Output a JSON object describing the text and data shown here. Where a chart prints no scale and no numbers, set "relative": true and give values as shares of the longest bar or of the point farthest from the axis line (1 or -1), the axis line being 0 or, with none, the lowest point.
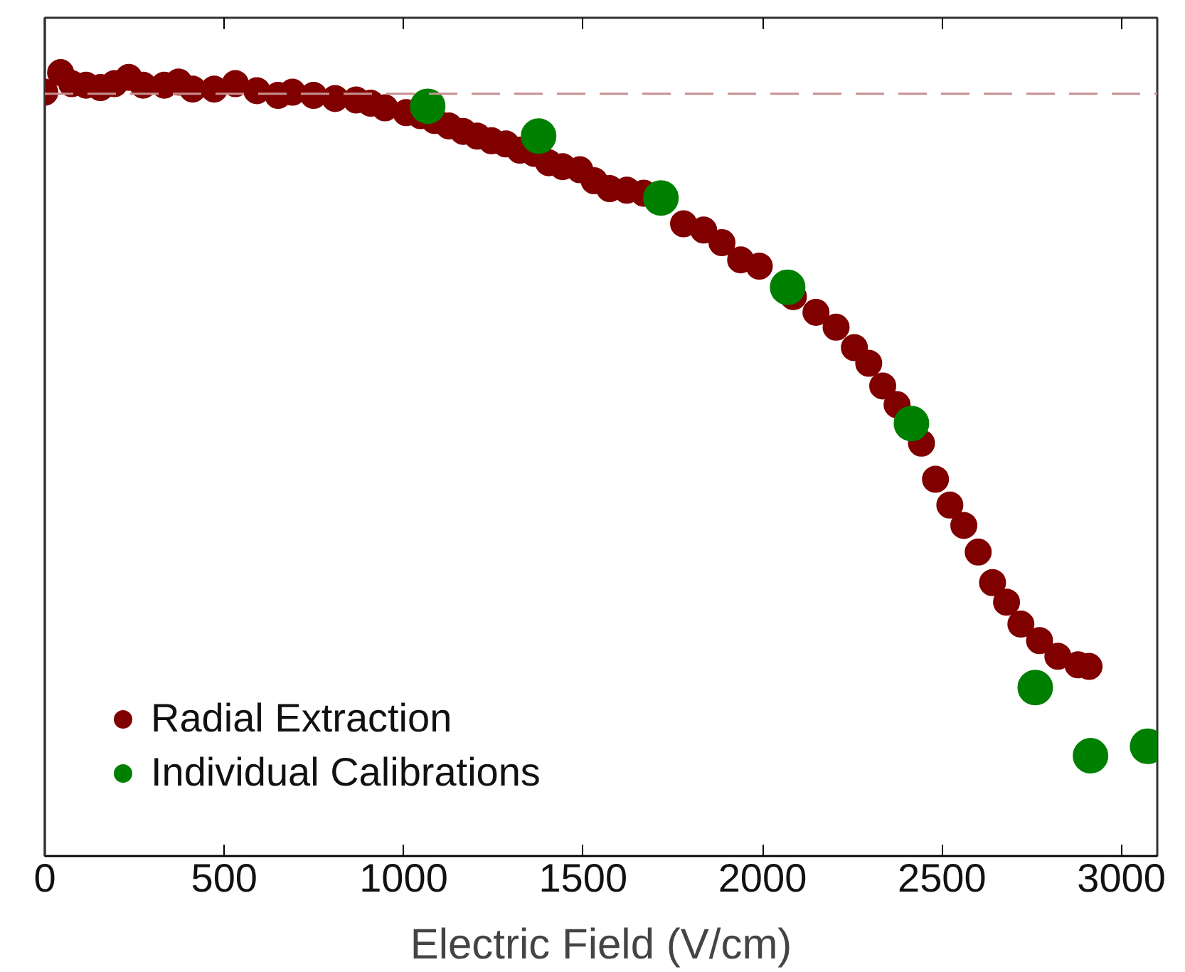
{
  "chart_data": {
    "type": "scatter",
    "xlabel": "Electric Field (V/cm)",
    "relative": true,
    "tick_labels": "x",
    "xlim": [
      0,
      3100
    ],
    "xticks": [
      0,
      500,
      1000,
      1500,
      2000,
      2500,
      3000
    ],
    "legend": "bottom left",
    "grid": false,
    "marker": "circle",
    "ref_lines": [
      {
        "axis": "y",
        "value": 0.973,
        "color": "#c89090",
        "line_style": "dashed"
      }
    ],
    "series": [
      {
        "name": "Radial Extraction",
        "color": "#800000",
        "x": [
          0,
          44,
          75,
          115,
          155,
          194,
          234,
          274,
          333,
          373,
          412,
          472,
          531,
          591,
          650,
          690,
          749,
          809,
          868,
          908,
          948,
          1007,
          1047,
          1086,
          1126,
          1166,
          1205,
          1245,
          1285,
          1324,
          1364,
          1404,
          1443,
          1491,
          1531,
          1574,
          1622,
          1669,
          1729,
          1780,
          1836,
          1887,
          1939,
          1991,
          2086,
          2149,
          2205,
          2256,
          2296,
          2335,
          2375,
          2443,
          2482,
          2522,
          2561,
          2601,
          2641,
          2680,
          2720,
          2772,
          2823,
          2879,
          2910
        ],
        "values": [
          0.975,
          1.0,
          0.986,
          0.984,
          0.981,
          0.986,
          0.994,
          0.984,
          0.984,
          0.988,
          0.979,
          0.979,
          0.986,
          0.977,
          0.971,
          0.975,
          0.971,
          0.967,
          0.965,
          0.961,
          0.955,
          0.949,
          0.945,
          0.939,
          0.932,
          0.925,
          0.919,
          0.913,
          0.909,
          0.901,
          0.897,
          0.885,
          0.88,
          0.876,
          0.862,
          0.852,
          0.85,
          0.846,
          null,
          0.807,
          0.799,
          0.783,
          0.761,
          0.753,
          0.714,
          0.694,
          0.675,
          0.649,
          0.629,
          0.6,
          0.576,
          0.527,
          0.481,
          0.448,
          0.422,
          0.388,
          0.349,
          0.324,
          0.296,
          0.275,
          0.255,
          0.244,
          0.242
        ]
      },
      {
        "name": "Individual Calibrations",
        "color": "#008000",
        "x": [
          1067,
          1376,
          1717,
          2070,
          2415,
          2760,
          2914,
          3073
        ],
        "values": [
          0.957,
          0.919,
          0.84,
          0.726,
          0.552,
          0.215,
          0.128,
          0.14
        ]
      }
    ]
  }
}
